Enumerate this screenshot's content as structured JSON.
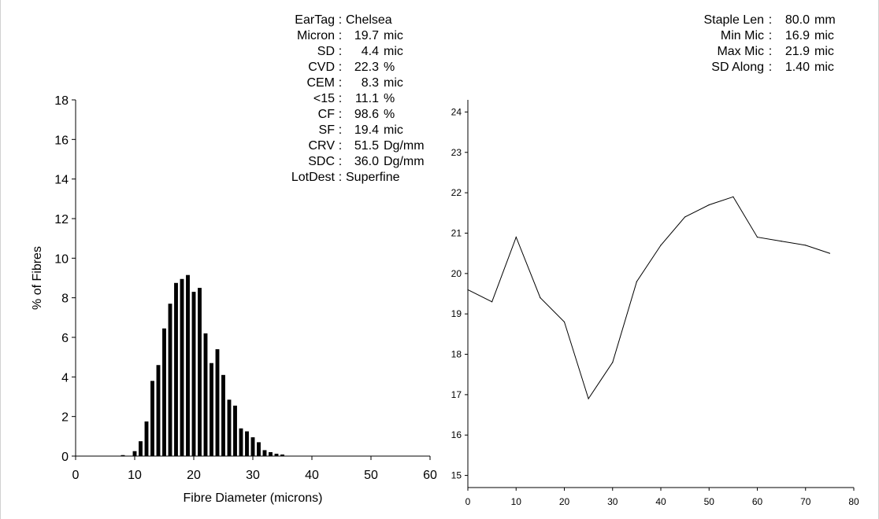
{
  "stats_left": [
    {
      "label": "EarTag",
      "num": "",
      "unit": "Chelsea"
    },
    {
      "label": "Micron",
      "num": "19.7",
      "unit": "mic"
    },
    {
      "label": "SD",
      "num": "4.4",
      "unit": "mic"
    },
    {
      "label": "CVD",
      "num": "22.3",
      "unit": "%"
    },
    {
      "label": "CEM",
      "num": "8.3",
      "unit": "mic"
    },
    {
      "label": "<15",
      "num": "11.1",
      "unit": "%"
    },
    {
      "label": "CF",
      "num": "98.6",
      "unit": "%"
    },
    {
      "label": "SF",
      "num": "19.4",
      "unit": "mic"
    },
    {
      "label": "CRV",
      "num": "51.5",
      "unit": "Dg/mm"
    },
    {
      "label": "SDC",
      "num": "36.0",
      "unit": "Dg/mm"
    },
    {
      "label": "LotDest",
      "num": "",
      "unit": "Superfine"
    }
  ],
  "stats_right": [
    {
      "label": "Staple Len",
      "num": "80.0",
      "unit": "mm"
    },
    {
      "label": "Min Mic",
      "num": "16.9",
      "unit": "mic"
    },
    {
      "label": "Max Mic",
      "num": "21.9",
      "unit": "mic"
    },
    {
      "label": "SD Along",
      "num": "1.40",
      "unit": "mic"
    }
  ],
  "chart_data": [
    {
      "type": "bar",
      "xlabel": "Fibre Diameter (microns)",
      "ylabel": "% of Fibres",
      "xlim": [
        0,
        60
      ],
      "ylim": [
        0,
        18
      ],
      "x_ticks": [
        0,
        10,
        20,
        30,
        40,
        50,
        60
      ],
      "y_ticks": [
        0,
        2,
        4,
        6,
        8,
        10,
        12,
        14,
        16,
        18
      ],
      "grid": false,
      "x": [
        8,
        10,
        11,
        12,
        13,
        14,
        15,
        16,
        17,
        18,
        19,
        20,
        21,
        22,
        23,
        24,
        25,
        26,
        27,
        28,
        29,
        30,
        31,
        32,
        33,
        34,
        35
      ],
      "values": [
        0.05,
        0.25,
        0.75,
        1.75,
        3.8,
        4.6,
        6.45,
        7.7,
        8.75,
        8.95,
        9.15,
        8.3,
        8.5,
        6.2,
        4.7,
        5.4,
        4.1,
        2.85,
        2.55,
        1.4,
        1.25,
        0.95,
        0.7,
        0.3,
        0.2,
        0.12,
        0.08
      ]
    },
    {
      "type": "line",
      "xlim": [
        0,
        80
      ],
      "ylim": [
        14.7,
        24.3
      ],
      "x_ticks": [
        0,
        10,
        20,
        30,
        40,
        50,
        60,
        70,
        80
      ],
      "y_ticks": [
        15,
        16,
        17,
        18,
        19,
        20,
        21,
        22,
        23,
        24
      ],
      "grid": false,
      "x": [
        0,
        5,
        10,
        15,
        20,
        25,
        30,
        35,
        40,
        45,
        50,
        55,
        60,
        65,
        70,
        75
      ],
      "values": [
        19.6,
        19.3,
        20.9,
        19.4,
        18.8,
        16.9,
        17.8,
        19.8,
        20.7,
        21.4,
        21.7,
        21.9,
        20.9,
        20.8,
        20.7,
        20.5
      ]
    }
  ]
}
